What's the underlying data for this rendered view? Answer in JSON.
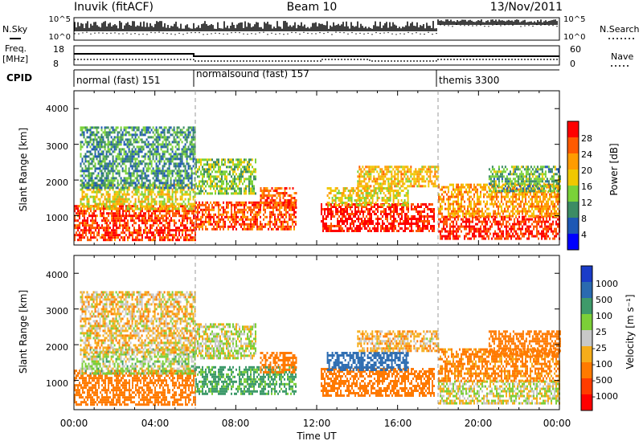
{
  "header": {
    "station": "Inuvik (fitACF)",
    "beam": "Beam 10",
    "date": "13/Nov/2011"
  },
  "noise_panel": {
    "left_label": "N.Sky",
    "right_label": "N.Search",
    "left_ticks": [
      "10^5",
      "10^0"
    ],
    "right_ticks": [
      "10^5",
      "10^0"
    ]
  },
  "freq_panel": {
    "left_label_line1": "Freq.",
    "left_label_line2": "[MHz]",
    "left_ticks": [
      "18",
      "8"
    ],
    "right_label": "Nave",
    "right_ticks": [
      "60",
      "0"
    ]
  },
  "cpid": {
    "label": "CPID",
    "programs": [
      {
        "name": "normal (fast) 151",
        "start": 0,
        "end": 6
      },
      {
        "name": "normalsound (fast) 157",
        "start": 6,
        "end": 18
      },
      {
        "name": "themis 3300",
        "start": 18,
        "end": 24
      }
    ]
  },
  "x_axis": {
    "label": "Time UT",
    "ticks": [
      "00:00",
      "04:00",
      "08:00",
      "12:00",
      "16:00",
      "20:00",
      "00:00"
    ],
    "range_hours": [
      0,
      24
    ]
  },
  "power_panel": {
    "ylabel": "Slant Range [km]",
    "yticks": [
      "4000",
      "3000",
      "2000",
      "1000"
    ],
    "colorbar_label": "Power [dB]",
    "colorbar_ticks": [
      "28",
      "24",
      "20",
      "16",
      "12",
      "8",
      "4"
    ]
  },
  "velocity_panel": {
    "ylabel": "Slant Range [km]",
    "yticks": [
      "4000",
      "3000",
      "2000",
      "1000"
    ],
    "colorbar_label": "Velocity [m s⁻¹]",
    "colorbar_ticks": [
      "1000",
      "500",
      "100",
      "25",
      "-25",
      "-100",
      "-500",
      "-1000"
    ]
  },
  "chart_data": {
    "type": "heatmap",
    "x_range_hours": [
      0,
      24
    ],
    "y_range_km": [
      180,
      4500
    ],
    "power_colors": [
      "#0000ff",
      "#1e58b4",
      "#3c8c64",
      "#7ad238",
      "#f0c800",
      "#ff9c00",
      "#ff5a00",
      "#ff0000"
    ],
    "power_bounds_db": [
      0,
      4,
      8,
      12,
      16,
      20,
      24,
      28,
      32
    ],
    "velocity_colors": [
      "#1a3cc8",
      "#2a6ab0",
      "#3e9a6a",
      "#7ccf38",
      "#c8c8c8",
      "#f6ad1a",
      "#ff7a00",
      "#ff3c00",
      "#ff0000"
    ],
    "velocity_bounds": [
      1000,
      500,
      100,
      25,
      -25,
      -100,
      -500,
      -1000
    ],
    "scatter_regions": [
      {
        "t0": 0.0,
        "t1": 6.0,
        "r0": 350,
        "r1": 1300,
        "power_db": 28,
        "velocity": -250
      },
      {
        "t0": 0.3,
        "t1": 6.0,
        "r0": 1200,
        "r1": 1900,
        "power_db": 18,
        "velocity": 30
      },
      {
        "t0": 0.3,
        "t1": 6.0,
        "r0": 1800,
        "r1": 3500,
        "power_db": 10,
        "velocity": -40
      },
      {
        "t0": 6.0,
        "t1": 11.0,
        "r0": 600,
        "r1": 1400,
        "power_db": 27,
        "velocity": 150
      },
      {
        "t0": 9.2,
        "t1": 11.0,
        "r0": 1200,
        "r1": 1800,
        "power_db": 26,
        "velocity": -300
      },
      {
        "t0": 6.0,
        "t1": 9.0,
        "r0": 1600,
        "r1": 2600,
        "power_db": 14,
        "velocity": 10
      },
      {
        "t0": 12.2,
        "t1": 17.8,
        "r0": 600,
        "r1": 1350,
        "power_db": 30,
        "velocity": -200
      },
      {
        "t0": 12.5,
        "t1": 16.5,
        "r0": 1300,
        "r1": 1800,
        "power_db": 18,
        "velocity": 600
      },
      {
        "t0": 14.0,
        "t1": 18.0,
        "r0": 1800,
        "r1": 2400,
        "power_db": 20,
        "velocity": -60
      },
      {
        "t0": 18.0,
        "t1": 24.0,
        "r0": 350,
        "r1": 1000,
        "power_db": 29,
        "velocity": 0
      },
      {
        "t0": 18.0,
        "t1": 24.0,
        "r0": 1000,
        "r1": 1900,
        "power_db": 22,
        "velocity": -150
      },
      {
        "t0": 20.5,
        "t1": 24.0,
        "r0": 1700,
        "r1": 2400,
        "power_db": 12,
        "velocity": -400
      }
    ]
  }
}
